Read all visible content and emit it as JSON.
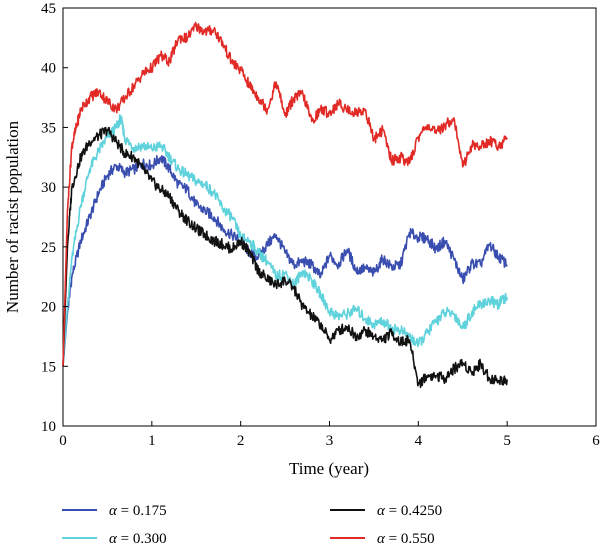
{
  "chart_data": {
    "type": "line",
    "title": "",
    "xlabel": "Time (year)",
    "ylabel": "Number of racist population",
    "xlim": [
      0,
      6
    ],
    "ylim": [
      10,
      45
    ],
    "xticks": [
      "0",
      "1",
      "2",
      "3",
      "4",
      "5",
      "6"
    ],
    "yticks": [
      "10",
      "15",
      "20",
      "25",
      "30",
      "35",
      "40",
      "45"
    ],
    "grid": false,
    "legend_position": "bottom",
    "series": [
      {
        "name": "α = 0.175",
        "symbol": "α",
        "value_text": " = 0.175",
        "color": "#3a4eb0",
        "x": [
          0,
          0.05,
          0.1,
          0.2,
          0.3,
          0.4,
          0.5,
          0.6,
          0.7,
          0.8,
          0.9,
          1.0,
          1.1,
          1.2,
          1.3,
          1.4,
          1.5,
          1.6,
          1.7,
          1.8,
          1.9,
          2.0,
          2.1,
          2.2,
          2.3,
          2.4,
          2.5,
          2.6,
          2.7,
          2.8,
          2.9,
          3.0,
          3.1,
          3.2,
          3.3,
          3.4,
          3.5,
          3.6,
          3.7,
          3.8,
          3.9,
          4.0,
          4.1,
          4.2,
          4.3,
          4.4,
          4.5,
          4.6,
          4.7,
          4.8,
          4.9,
          5.0
        ],
        "y": [
          15,
          19.5,
          22.5,
          25.5,
          27.5,
          29.5,
          31,
          31.8,
          31.2,
          31.5,
          32,
          31.8,
          32.5,
          31.5,
          30.2,
          29.8,
          28.5,
          28,
          27.5,
          26.5,
          26,
          25.5,
          24.5,
          24.2,
          25.2,
          26,
          24.5,
          23.5,
          23.8,
          23.5,
          22.5,
          24.3,
          23.5,
          24.8,
          23,
          23.2,
          22.8,
          24,
          23.3,
          23.5,
          26.2,
          25.8,
          25.7,
          24.8,
          25.5,
          24,
          22.2,
          23.6,
          23.5,
          25.2,
          24.2,
          23.5
        ]
      },
      {
        "name": "α = 0.300",
        "symbol": "α",
        "value_text": " = 0.300",
        "color": "#5fd2dc",
        "x": [
          0,
          0.05,
          0.1,
          0.2,
          0.3,
          0.4,
          0.5,
          0.6,
          0.65,
          0.7,
          0.8,
          0.9,
          1.0,
          1.1,
          1.2,
          1.3,
          1.4,
          1.5,
          1.6,
          1.7,
          1.8,
          1.9,
          2.0,
          2.1,
          2.2,
          2.3,
          2.4,
          2.5,
          2.6,
          2.7,
          2.8,
          2.9,
          3.0,
          3.1,
          3.2,
          3.3,
          3.4,
          3.5,
          3.6,
          3.7,
          3.8,
          3.9,
          4.0,
          4.1,
          4.2,
          4.3,
          4.4,
          4.5,
          4.6,
          4.7,
          4.8,
          4.9,
          5.0
        ],
        "y": [
          15,
          20,
          24,
          28.5,
          31.5,
          33,
          34.2,
          35,
          35.8,
          34,
          33.3,
          33.5,
          33.2,
          33.5,
          32.5,
          31.5,
          31,
          30.5,
          30.2,
          29.5,
          28.2,
          27.5,
          25.8,
          25.5,
          24.5,
          23.8,
          22.5,
          22.8,
          21.8,
          23,
          22.2,
          21,
          19.6,
          19.2,
          19.4,
          19.8,
          19,
          18.5,
          18.8,
          18.2,
          18,
          17.5,
          16.8,
          17.8,
          18.8,
          19.5,
          19.4,
          18.2,
          19.5,
          20.2,
          20.5,
          20.2,
          20.8
        ]
      },
      {
        "name": "α = 0.4250",
        "symbol": "α",
        "value_text": " = 0.4250",
        "color": "#111111",
        "x": [
          0,
          0.05,
          0.1,
          0.2,
          0.3,
          0.4,
          0.5,
          0.6,
          0.7,
          0.8,
          0.9,
          1.0,
          1.1,
          1.2,
          1.3,
          1.4,
          1.5,
          1.6,
          1.7,
          1.8,
          1.9,
          2.0,
          2.1,
          2.2,
          2.3,
          2.4,
          2.5,
          2.6,
          2.7,
          2.8,
          2.9,
          3.0,
          3.1,
          3.2,
          3.3,
          3.4,
          3.5,
          3.6,
          3.7,
          3.8,
          3.9,
          4.0,
          4.1,
          4.2,
          4.3,
          4.4,
          4.5,
          4.6,
          4.7,
          4.8,
          4.9,
          5.0
        ],
        "y": [
          15,
          25,
          30,
          32.5,
          33.8,
          34.3,
          34.8,
          33.8,
          32.8,
          32.5,
          31.5,
          30.5,
          29.8,
          29.2,
          28,
          27.2,
          26.5,
          26,
          25.5,
          25.2,
          24.8,
          25.5,
          24.5,
          23,
          22.3,
          21.8,
          22.2,
          21.5,
          20,
          19.2,
          18.5,
          17.2,
          18,
          18.3,
          17.5,
          18,
          17.5,
          17.2,
          17.8,
          17,
          17.2,
          13.5,
          14.2,
          14.2,
          14,
          14.8,
          15.3,
          14.5,
          15.2,
          14,
          13.8,
          13.9
        ]
      },
      {
        "name": "α = 0.550",
        "symbol": "α",
        "value_text": " = 0.550",
        "color": "#e12a26",
        "x": [
          0,
          0.05,
          0.1,
          0.15,
          0.2,
          0.3,
          0.4,
          0.5,
          0.6,
          0.7,
          0.8,
          0.9,
          1.0,
          1.1,
          1.2,
          1.3,
          1.4,
          1.5,
          1.6,
          1.7,
          1.8,
          1.9,
          2.0,
          2.1,
          2.2,
          2.3,
          2.4,
          2.5,
          2.6,
          2.7,
          2.8,
          2.9,
          3.0,
          3.1,
          3.2,
          3.3,
          3.4,
          3.5,
          3.6,
          3.7,
          3.8,
          3.9,
          4.0,
          4.1,
          4.2,
          4.3,
          4.4,
          4.5,
          4.6,
          4.7,
          4.8,
          4.9,
          5.0
        ],
        "y": [
          15,
          28,
          33.5,
          35,
          36.5,
          37.5,
          38,
          37.2,
          36.5,
          37.5,
          38.5,
          39.5,
          40,
          41,
          40.5,
          42.5,
          42.5,
          43.5,
          43,
          43.2,
          42,
          40.5,
          39.8,
          38.5,
          37.5,
          36.5,
          38.8,
          36,
          37.5,
          37.8,
          35.5,
          36.5,
          36.2,
          37,
          36.5,
          36.2,
          36.5,
          34,
          34.8,
          32.2,
          32.5,
          32,
          34.2,
          35.2,
          34.5,
          35.2,
          35.8,
          31.7,
          33.5,
          33.4,
          33.9,
          33.5,
          34
        ]
      }
    ]
  }
}
